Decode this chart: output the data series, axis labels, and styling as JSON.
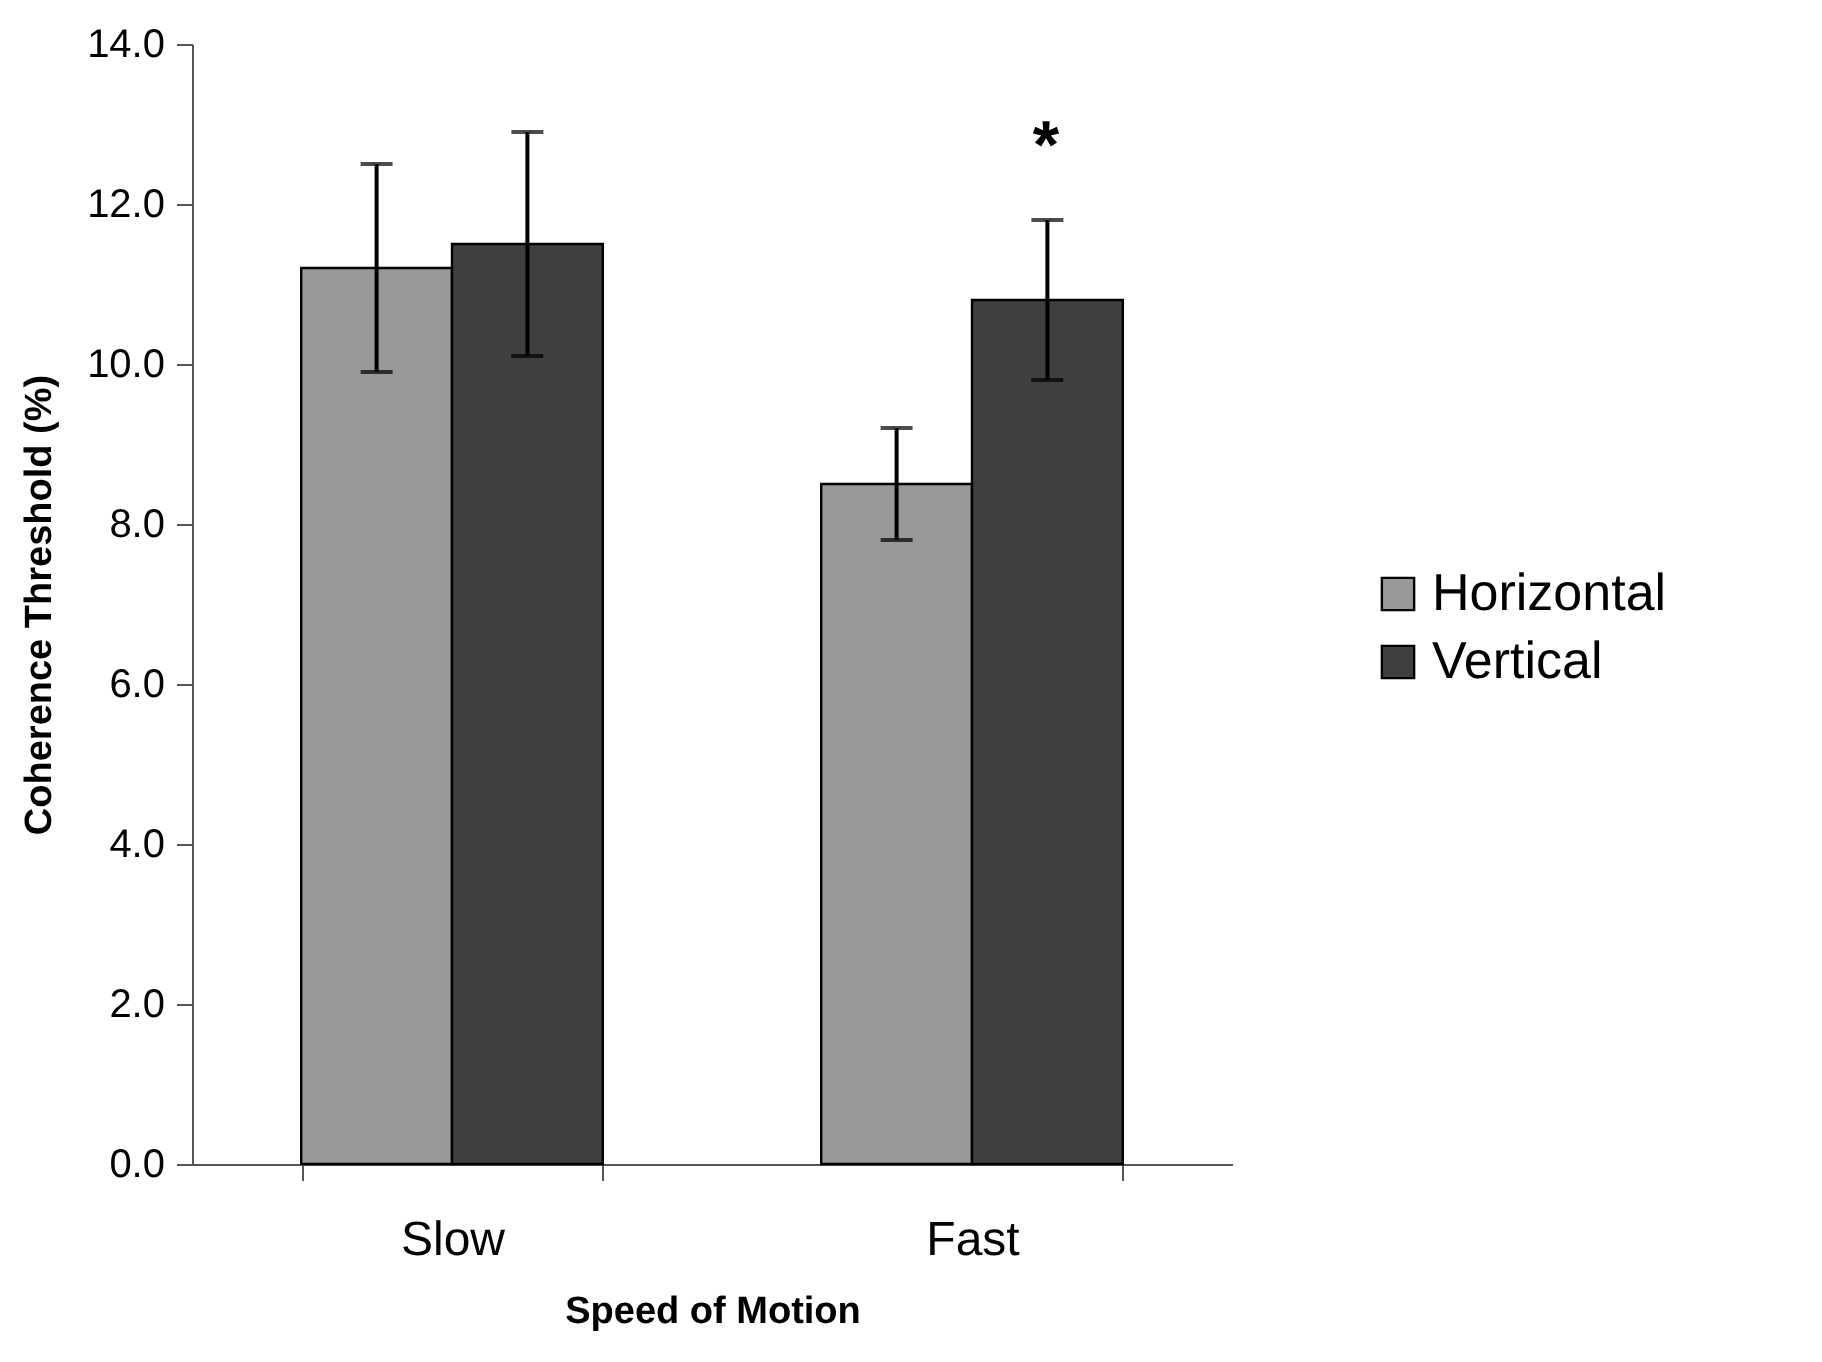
{
  "chart_data": {
    "type": "bar",
    "xlabel": "Speed of Motion",
    "ylabel": "Coherence Threshold (%)",
    "categories": [
      "Slow",
      "Fast"
    ],
    "series": [
      {
        "name": "Horizontal",
        "color": "#999999",
        "values": [
          11.2,
          8.5
        ],
        "errors": [
          1.3,
          0.7
        ]
      },
      {
        "name": "Vertical",
        "color": "#404040",
        "values": [
          11.5,
          10.8
        ],
        "errors": [
          1.4,
          1.0
        ]
      }
    ],
    "ylim": [
      0,
      14
    ],
    "yticks": [
      {
        "value": 0,
        "label": "0.0"
      },
      {
        "value": 2,
        "label": "2.0"
      },
      {
        "value": 4,
        "label": "4.0"
      },
      {
        "value": 6,
        "label": "6.0"
      },
      {
        "value": 8,
        "label": "8.0"
      },
      {
        "value": 10,
        "label": "10.0"
      },
      {
        "value": 12,
        "label": "12.0"
      },
      {
        "value": 14,
        "label": "14.0"
      }
    ],
    "annotations": [
      "*"
    ],
    "legend": "right",
    "grid": false
  }
}
